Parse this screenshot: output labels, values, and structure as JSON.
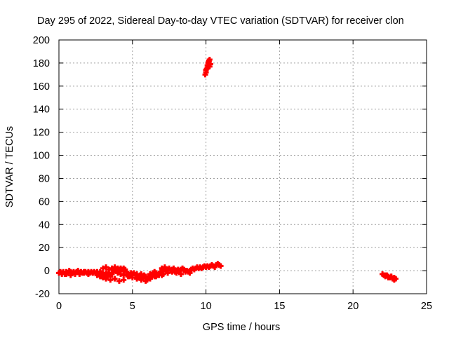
{
  "chart_data": {
    "type": "scatter",
    "title": "Day 295 of 2022, Sidereal Day-to-day VTEC variation (SDTVAR) for receiver clon",
    "xlabel": "GPS time / hours",
    "ylabel": "SDTVAR / TECUs",
    "xlim": [
      0,
      25
    ],
    "ylim": [
      -20,
      200
    ],
    "xticks": [
      0,
      5,
      10,
      15,
      20,
      25
    ],
    "yticks": [
      -20,
      0,
      20,
      40,
      60,
      80,
      100,
      120,
      140,
      160,
      180,
      200
    ],
    "grid": true,
    "marker": "plus",
    "series_color": "#ff0000",
    "series": [
      {
        "x": [
          0.0,
          0.1,
          0.2,
          0.3,
          0.4,
          0.5,
          0.6,
          0.7,
          0.8,
          0.9,
          1.0,
          1.1,
          1.2,
          1.3,
          1.4,
          1.5,
          1.6,
          1.7,
          1.8,
          1.9,
          2.0,
          2.1,
          2.2,
          2.3,
          2.4,
          2.5,
          2.6,
          2.7,
          2.8,
          2.9,
          3.0,
          3.1,
          3.2,
          3.3,
          3.4,
          3.5,
          3.6,
          3.7,
          3.8,
          3.9,
          4.0,
          4.1,
          4.2,
          4.3,
          4.4,
          4.5,
          4.6,
          4.7,
          4.8,
          4.9,
          5.0,
          5.1,
          5.2,
          5.3,
          5.4,
          5.5,
          5.6,
          5.7,
          5.8,
          5.9,
          6.0,
          6.1,
          6.2,
          6.3,
          6.4,
          6.5,
          6.6,
          6.7,
          6.8,
          6.9,
          7.0,
          7.1,
          7.2,
          7.3,
          7.4,
          7.5,
          7.6,
          7.7,
          7.8,
          7.9,
          8.0,
          8.1,
          8.2,
          8.3,
          8.4,
          8.5,
          8.6,
          8.7,
          8.8,
          8.9,
          9.0,
          9.1,
          9.2,
          9.3,
          9.4,
          9.5,
          9.6,
          9.7,
          9.8,
          9.9,
          10.0,
          10.1,
          10.2,
          10.3,
          10.4,
          10.5,
          10.6,
          10.7,
          10.8,
          10.9,
          11.0,
          0.2,
          0.5,
          0.8,
          1.1,
          1.4,
          1.7,
          2.0,
          2.3,
          2.6,
          2.9,
          3.2,
          3.5,
          3.8,
          4.1,
          4.4,
          4.7,
          5.0,
          5.3,
          5.6,
          5.9,
          6.2,
          6.5,
          6.8,
          7.1,
          7.4,
          7.7,
          8.0,
          8.3,
          8.6,
          8.9,
          3.0,
          3.2,
          3.4,
          3.6,
          3.8,
          4.0,
          4.2,
          4.4,
          5.4,
          5.6,
          5.8,
          6.0,
          6.2,
          6.4,
          6.6,
          6.8,
          7.0,
          4.0,
          4.2,
          4.4,
          4.6,
          4.8,
          2.6,
          2.8,
          3.0,
          3.2,
          7.0,
          7.2,
          7.4,
          7.6,
          7.8,
          9.95,
          10.0,
          10.05,
          10.1,
          10.15,
          10.2,
          10.25,
          10.3,
          10.0,
          10.1,
          10.2,
          10.25,
          22.0,
          22.1,
          22.2,
          22.3,
          22.4,
          22.5,
          22.6,
          22.7,
          22.8,
          22.9,
          22.2,
          22.4,
          22.6,
          22.8
        ],
        "y": [
          -2,
          -1,
          -2,
          -1,
          -3,
          -1,
          -2,
          0,
          -1,
          -2,
          -1,
          -2,
          -1,
          0,
          -2,
          -1,
          -2,
          -1,
          -1,
          -2,
          -1,
          -2,
          -1,
          -2,
          -1,
          -2,
          -2,
          -3,
          -1,
          -2,
          -3,
          -4,
          -2,
          -3,
          -2,
          -5,
          -3,
          -1,
          0,
          1,
          0,
          1,
          2,
          1,
          0,
          1,
          -1,
          -3,
          -4,
          -2,
          -3,
          -2,
          -4,
          -3,
          -5,
          -4,
          -3,
          -5,
          -4,
          -5,
          -7,
          -5,
          -3,
          -4,
          -2,
          -1,
          -2,
          -4,
          -3,
          -1,
          -2,
          0,
          1,
          0,
          1,
          2,
          0,
          1,
          0,
          -1,
          0,
          1,
          0,
          1,
          2,
          1,
          0,
          0,
          -1,
          0,
          1,
          2,
          1,
          2,
          3,
          2,
          3,
          2,
          3,
          4,
          3,
          4,
          3,
          4,
          5,
          4,
          3,
          5,
          6,
          5,
          4,
          -3,
          -3,
          -4,
          -3,
          -3,
          -2,
          -3,
          -2,
          -1,
          -5,
          -6,
          -8,
          -7,
          -9,
          -8,
          -5,
          -6,
          -7,
          -8,
          -9,
          -7,
          -5,
          -4,
          -3,
          -2,
          -1,
          -2,
          -3,
          -1,
          -2,
          2,
          3,
          1,
          2,
          3,
          2,
          1,
          2,
          -6,
          -7,
          -5,
          -8,
          -6,
          -4,
          -5,
          -3,
          -4,
          -2,
          -3,
          -4,
          -3,
          -5,
          -4,
          -5,
          -6,
          -7,
          2,
          3,
          1,
          0,
          2,
          170,
          172,
          175,
          178,
          180,
          182,
          177,
          179,
          174,
          176,
          181,
          183,
          -3,
          -4,
          -5,
          -4,
          -5,
          -6,
          -5,
          -7,
          -6,
          -7,
          -4,
          -6,
          -5,
          -8
        ]
      }
    ]
  }
}
